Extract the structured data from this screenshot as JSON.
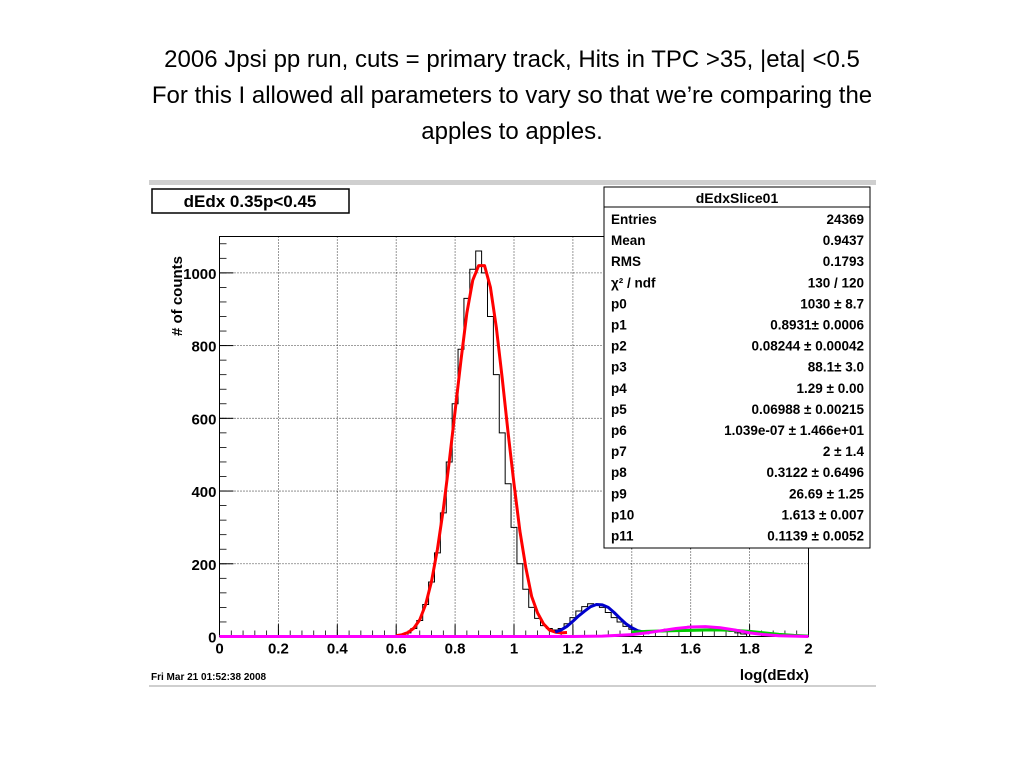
{
  "slide": {
    "title_lines": [
      "2006 Jpsi pp run, cuts = primary track, Hits in TPC >35, |eta| <0.5",
      "For this I allowed all parameters to vary so that we’re comparing the",
      "apples to apples."
    ]
  },
  "canvas": {
    "timestamp": "Fri Mar 21 01:52:38 2008"
  },
  "stats_box": {
    "title": "dEdxSlice01",
    "rows": [
      {
        "name": "Entries",
        "value": "24369"
      },
      {
        "name": "Mean",
        "value": "0.9437"
      },
      {
        "name": "RMS",
        "value": "0.1793"
      },
      {
        "name": "χ² / ndf",
        "value": "130 / 120"
      },
      {
        "name": "p0",
        "value": "1030 ± 8.7"
      },
      {
        "name": "p1",
        "value": "0.8931± 0.0006"
      },
      {
        "name": "p2",
        "value": "0.08244 ± 0.00042"
      },
      {
        "name": "p3",
        "value": "88.1± 3.0"
      },
      {
        "name": "p4",
        "value": "1.29 ± 0.00"
      },
      {
        "name": "p5",
        "value": "0.06988 ± 0.00215"
      },
      {
        "name": "p6",
        "value": "1.039e-07 ± 1.466e+01"
      },
      {
        "name": "p7",
        "value": "2 ± 1.4"
      },
      {
        "name": "p8",
        "value": "0.3122 ± 0.6496"
      },
      {
        "name": "p9",
        "value": "26.69 ± 1.25"
      },
      {
        "name": "p10",
        "value": "1.613 ± 0.007"
      },
      {
        "name": "p11",
        "value": "0.1139 ± 0.0052"
      }
    ]
  },
  "chart_data": {
    "type": "line",
    "title": "dEdx 0.35p<0.45",
    "xlabel": "log(dEdx)",
    "ylabel": "# of counts",
    "xlim": [
      0,
      2
    ],
    "ylim": [
      0,
      1100
    ],
    "xticks": [
      "0",
      "0.2",
      "0.4",
      "0.6",
      "0.8",
      "1",
      "1.2",
      "1.4",
      "1.6",
      "1.8",
      "2"
    ],
    "yticks": [
      "0",
      "200",
      "400",
      "600",
      "800",
      "1000"
    ],
    "grid": true,
    "legend": "top-right",
    "series": [
      {
        "kind": "histogram",
        "color": "#000000",
        "x": [
          0.6,
          0.62,
          0.64,
          0.66,
          0.68,
          0.7,
          0.72,
          0.74,
          0.76,
          0.78,
          0.8,
          0.82,
          0.84,
          0.86,
          0.88,
          0.9,
          0.92,
          0.94,
          0.96,
          0.98,
          1.0,
          1.02,
          1.04,
          1.06,
          1.08,
          1.1,
          1.12,
          1.14,
          1.16,
          1.18,
          1.2,
          1.22,
          1.24,
          1.26,
          1.28,
          1.3,
          1.32,
          1.34,
          1.36,
          1.38,
          1.4,
          1.42,
          1.44,
          1.46,
          1.48,
          1.5,
          1.52,
          1.54,
          1.56,
          1.58,
          1.6,
          1.62,
          1.64,
          1.66,
          1.68,
          1.7,
          1.72,
          1.74,
          1.76,
          1.78
        ],
        "y": [
          2,
          5,
          10,
          22,
          44,
          88,
          150,
          230,
          340,
          480,
          640,
          790,
          930,
          1010,
          1060,
          1000,
          880,
          720,
          560,
          420,
          300,
          200,
          130,
          80,
          50,
          30,
          22,
          18,
          22,
          35,
          52,
          70,
          82,
          90,
          86,
          80,
          66,
          52,
          40,
          28,
          20,
          15,
          12,
          14,
          16,
          18,
          20,
          22,
          24,
          26,
          28,
          28,
          27,
          26,
          24,
          22,
          18,
          14,
          10,
          7
        ]
      },
      {
        "kind": "fit",
        "color": "#ff0000",
        "x": [
          0.6,
          0.62,
          0.64,
          0.66,
          0.68,
          0.7,
          0.72,
          0.74,
          0.76,
          0.78,
          0.8,
          0.82,
          0.84,
          0.86,
          0.88,
          0.9,
          0.92,
          0.94,
          0.96,
          0.98,
          1.0,
          1.02,
          1.04,
          1.06,
          1.08,
          1.1,
          1.12,
          1.14,
          1.16,
          1.18
        ],
        "y": [
          2,
          5,
          11,
          23,
          46,
          88,
          152,
          240,
          350,
          480,
          620,
          760,
          890,
          980,
          1020,
          1020,
          960,
          850,
          710,
          560,
          420,
          290,
          190,
          110,
          65,
          35,
          18,
          12,
          10,
          11
        ]
      },
      {
        "kind": "fit",
        "color": "#0000cc",
        "x": [
          1.14,
          1.16,
          1.18,
          1.2,
          1.22,
          1.24,
          1.26,
          1.28,
          1.3,
          1.32,
          1.34,
          1.36,
          1.38,
          1.4,
          1.42,
          1.44,
          1.46
        ],
        "y": [
          12,
          18,
          28,
          42,
          57,
          70,
          82,
          88,
          87,
          80,
          66,
          50,
          35,
          24,
          16,
          12,
          10
        ]
      },
      {
        "kind": "fit",
        "color": "#00cc00",
        "x": [
          1.4,
          1.45,
          1.5,
          1.55,
          1.6,
          1.65,
          1.7,
          1.75,
          1.8,
          1.85,
          1.9,
          1.95,
          2.0
        ],
        "y": [
          12,
          14,
          15,
          16,
          17,
          18,
          18,
          17,
          14,
          10,
          6,
          3,
          1
        ]
      },
      {
        "kind": "fit",
        "color": "#ff00ff",
        "x": [
          0.0,
          0.2,
          0.4,
          0.6,
          0.8,
          1.0,
          1.2,
          1.3,
          1.4,
          1.45,
          1.5,
          1.55,
          1.6,
          1.65,
          1.7,
          1.75,
          1.8,
          1.85,
          1.9,
          2.0
        ],
        "y": [
          0,
          0,
          0,
          0,
          0,
          0,
          0,
          1,
          5,
          10,
          16,
          22,
          26,
          27,
          24,
          18,
          10,
          5,
          2,
          0
        ]
      }
    ]
  }
}
